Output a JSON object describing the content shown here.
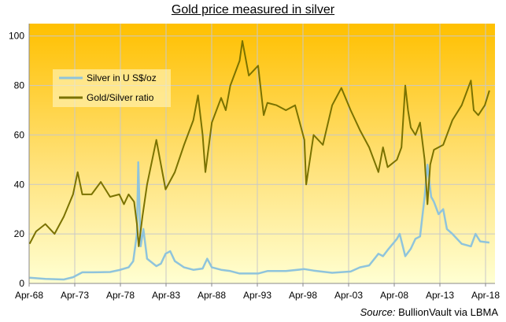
{
  "chart_data": {
    "type": "line",
    "title": "Gold price measured in silver",
    "source_label": "Source:",
    "source_text": "BullionVault via LBMA",
    "x_ticks": [
      "Apr-68",
      "Apr-73",
      "Apr-78",
      "Apr-83",
      "Apr-88",
      "Apr-93",
      "Apr-98",
      "Apr-03",
      "Apr-08",
      "Apr-13",
      "Apr-18"
    ],
    "xlim": [
      1968.25,
      2018.6
    ],
    "ylim": [
      0,
      105
    ],
    "y_ticks": [
      0,
      20,
      40,
      60,
      80,
      100
    ],
    "grid": true,
    "legend_position": "top-left",
    "series": [
      {
        "name": "Silver in U S$/oz",
        "color": "#8fc4dc",
        "x": [
          1968.3,
          1970.0,
          1972.0,
          1973.0,
          1974.0,
          1975.0,
          1977.0,
          1978.0,
          1979.0,
          1979.5,
          1979.9,
          1980.05,
          1980.3,
          1980.6,
          1981.0,
          1982.0,
          1982.5,
          1983.0,
          1983.5,
          1984.0,
          1985.0,
          1986.0,
          1987.0,
          1987.5,
          1988.0,
          1989.0,
          1990.0,
          1991.0,
          1993.0,
          1994.0,
          1996.0,
          1998.0,
          1999.0,
          2001.0,
          2003.0,
          2004.0,
          2005.0,
          2006.0,
          2006.5,
          2007.0,
          2008.0,
          2008.3,
          2008.9,
          2009.5,
          2010.0,
          2010.5,
          2011.0,
          2011.3,
          2011.7,
          2012.0,
          2012.5,
          2013.0,
          2013.4,
          2014.0,
          2015.0,
          2016.0,
          2016.5,
          2017.0,
          2018.0
        ],
        "values": [
          2.3,
          1.8,
          1.6,
          2.5,
          4.5,
          4.5,
          4.6,
          5.4,
          6.5,
          9.0,
          20.0,
          49.0,
          15.0,
          22.0,
          10.0,
          7.0,
          8.0,
          12.0,
          13.0,
          9.0,
          6.5,
          5.5,
          6.0,
          10.0,
          6.5,
          5.5,
          5.0,
          4.0,
          4.0,
          5.0,
          5.0,
          5.8,
          5.2,
          4.3,
          4.8,
          6.5,
          7.3,
          12.0,
          11.0,
          13.5,
          18.0,
          20.0,
          11.0,
          14.0,
          18.0,
          19.0,
          35.0,
          48.0,
          35.0,
          33.0,
          28.0,
          30.0,
          22.0,
          20.0,
          16.0,
          15.0,
          20.0,
          17.0,
          16.5
        ]
      },
      {
        "name": "Gold/Silver ratio",
        "color": "#7a7200",
        "x": [
          1968.3,
          1969.0,
          1970.0,
          1971.0,
          1972.0,
          1973.0,
          1973.5,
          1974.0,
          1975.0,
          1976.0,
          1977.0,
          1978.0,
          1978.5,
          1979.0,
          1979.6,
          1979.9,
          1980.1,
          1980.5,
          1981.0,
          1982.0,
          1982.5,
          1983.0,
          1984.0,
          1985.0,
          1986.0,
          1986.5,
          1987.0,
          1987.3,
          1988.0,
          1989.0,
          1989.5,
          1990.0,
          1991.0,
          1991.3,
          1992.0,
          1993.0,
          1993.6,
          1994.0,
          1995.0,
          1996.0,
          1997.0,
          1998.0,
          1998.2,
          1998.6,
          1999.0,
          2000.0,
          2001.0,
          2002.0,
          2003.0,
          2004.0,
          2005.0,
          2006.0,
          2006.5,
          2007.0,
          2008.0,
          2008.5,
          2008.9,
          2009.2,
          2009.5,
          2010.0,
          2010.5,
          2011.0,
          2011.3,
          2011.6,
          2012.0,
          2013.0,
          2014.0,
          2015.0,
          2016.0,
          2016.3,
          2016.8,
          2017.5,
          2018.0
        ],
        "values": [
          16.0,
          21.0,
          24.0,
          20.0,
          27.0,
          36.0,
          45.0,
          36.0,
          36.0,
          41.0,
          35.0,
          36.0,
          32.0,
          36.0,
          33.0,
          24.0,
          15.0,
          27.0,
          40.0,
          58.0,
          48.0,
          38.0,
          45.0,
          56.0,
          66.0,
          76.0,
          60.0,
          45.0,
          65.0,
          75.0,
          70.0,
          80.0,
          90.0,
          98.0,
          84.0,
          88.0,
          68.0,
          73.0,
          72.0,
          70.0,
          72.0,
          58.0,
          40.0,
          50.0,
          60.0,
          56.0,
          72.0,
          79.0,
          70.0,
          62.0,
          55.0,
          45.0,
          55.0,
          47.0,
          50.0,
          55.0,
          80.0,
          70.0,
          63.0,
          60.0,
          65.0,
          50.0,
          32.0,
          48.0,
          54.0,
          56.0,
          66.0,
          72.0,
          82.0,
          70.0,
          68.0,
          72.0,
          78.0
        ]
      }
    ]
  }
}
